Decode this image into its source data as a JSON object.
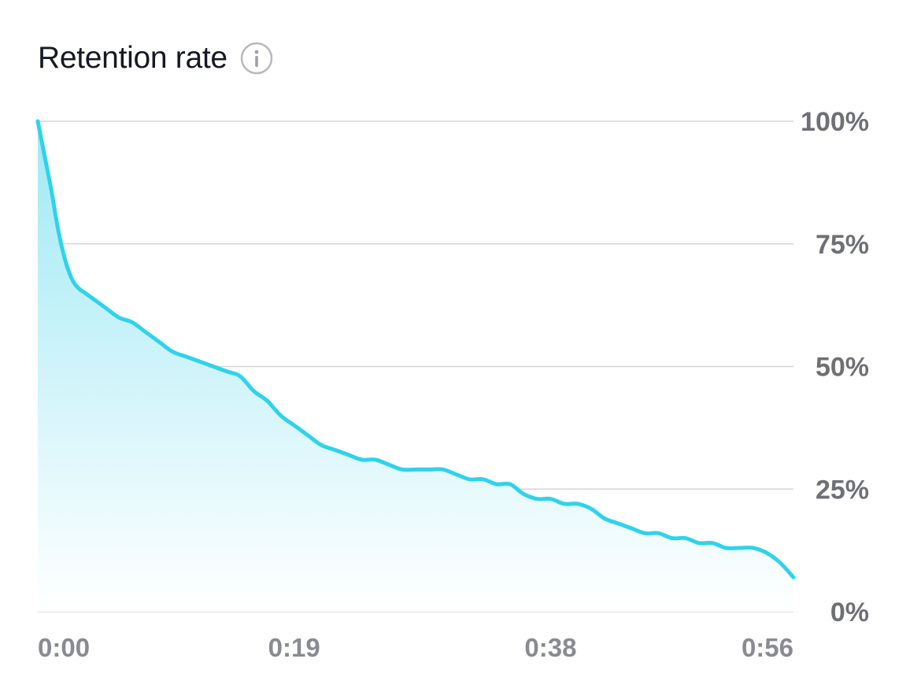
{
  "header": {
    "title": "Retention rate",
    "info_icon": "info-icon"
  },
  "colors": {
    "line": "#2fd3ea",
    "fill_top": "#9ee9f5",
    "grid": "#d6d6d9",
    "axis_text": "#6f7076"
  },
  "chart_data": {
    "type": "area",
    "title": "Retention rate",
    "xlabel": "",
    "ylabel": "",
    "x_unit": "seconds",
    "xlim": [
      0,
      56
    ],
    "ylim": [
      0,
      100
    ],
    "y_ticks": [
      "100%",
      "75%",
      "50%",
      "25%",
      "0%"
    ],
    "y_tick_values": [
      100,
      75,
      50,
      25,
      0
    ],
    "x_ticks": [
      "0:00",
      "0:19",
      "0:38",
      "0:56"
    ],
    "x_tick_values": [
      0,
      19,
      38,
      56
    ],
    "grid": true,
    "x": [
      0,
      0.5,
      1,
      1.5,
      2,
      2.5,
      3,
      3.5,
      4,
      5,
      6,
      7,
      8,
      9,
      10,
      11,
      12,
      13,
      14,
      15,
      16,
      17,
      18,
      19,
      20,
      21,
      22,
      23,
      24,
      25,
      26,
      27,
      28,
      29,
      30,
      31,
      32,
      33,
      34,
      35,
      36,
      37,
      38,
      39,
      40,
      41,
      42,
      43,
      44,
      45,
      46,
      47,
      48,
      49,
      50,
      51,
      52,
      53,
      54,
      55,
      56
    ],
    "values": [
      100,
      93,
      86,
      78,
      72,
      68,
      66,
      65,
      64,
      62,
      60,
      59,
      57,
      55,
      53,
      52,
      51,
      50,
      49,
      48,
      45,
      43,
      40,
      38,
      36,
      34,
      33,
      32,
      31,
      31,
      30,
      29,
      29,
      29,
      29,
      28,
      27,
      27,
      26,
      26,
      24,
      23,
      23,
      22,
      22,
      21,
      19,
      18,
      17,
      16,
      16,
      15,
      15,
      14,
      14,
      13,
      13,
      13,
      12,
      10,
      7
    ]
  }
}
